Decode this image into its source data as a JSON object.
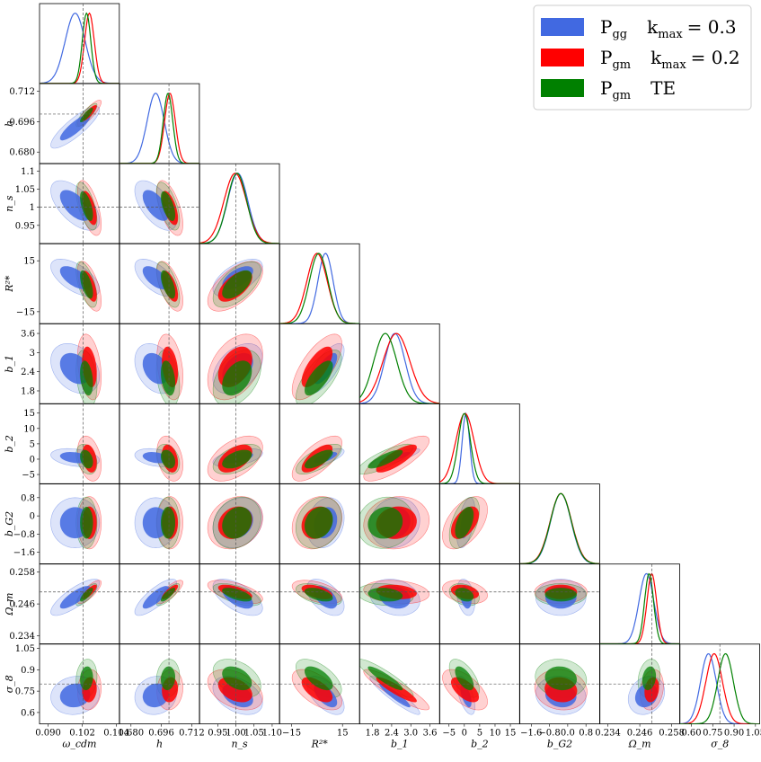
{
  "chart_data": {
    "type": "corner",
    "title": "",
    "series": [
      {
        "name": "P_gg  k_max = 0.3",
        "color": "#4169e1"
      },
      {
        "name": "P_gm  k_max = 0.2",
        "color": "#ff0000"
      },
      {
        "name": "P_gm  TE",
        "color": "#008000"
      }
    ],
    "legend": {
      "placement": "top-right",
      "entries": [
        {
          "main": "P",
          "sub": "gg",
          "extra": "k",
          "extra_sub": "max",
          "value": "= 0.3"
        },
        {
          "main": "P",
          "sub": "gm",
          "extra": "k",
          "extra_sub": "max",
          "value": "= 0.2"
        },
        {
          "main": "P",
          "sub": "gm",
          "extra": "TE",
          "extra_sub": "",
          "value": ""
        }
      ]
    },
    "parameters": [
      {
        "key": "omega_cdm",
        "label": "ω_cdm",
        "range": [
          0.087,
          0.115
        ],
        "ticks": [
          "0.090",
          "0.102",
          "0.114"
        ],
        "tick_values": [
          0.09,
          0.102,
          0.114
        ],
        "truth": 0.1023,
        "means": [
          0.0995,
          0.1045,
          0.1035
        ],
        "sigmas": [
          0.0035,
          0.0017,
          0.0015
        ]
      },
      {
        "key": "h",
        "label": "h",
        "range": [
          0.674,
          0.716
        ],
        "ticks": [
          "0.680",
          "0.696",
          "0.712"
        ],
        "tick_values": [
          0.68,
          0.696,
          0.712
        ],
        "truth": 0.7,
        "means": [
          0.693,
          0.7005,
          0.6995
        ],
        "sigmas": [
          0.0045,
          0.0028,
          0.0025
        ]
      },
      {
        "key": "n_s",
        "label": "n_s",
        "range": [
          0.9,
          1.12
        ],
        "ticks": [
          "0.95",
          "1.00",
          "1.05",
          "1.10"
        ],
        "tick_values": [
          0.95,
          1.0,
          1.05,
          1.1
        ],
        "truth": 1.0,
        "means": [
          1.005,
          0.998,
          1.003
        ],
        "sigmas": [
          0.028,
          0.031,
          0.027
        ]
      },
      {
        "key": "R_star",
        "label": "R²*",
        "range": [
          -22,
          25
        ],
        "ticks": [
          "−15",
          "15"
        ],
        "tick_values": [
          -15,
          15
        ],
        "truth": null,
        "means": [
          5,
          0,
          1
        ],
        "sigmas": [
          4.5,
          6.0,
          5.5
        ]
      },
      {
        "key": "b1",
        "label": "b_1",
        "range": [
          1.4,
          3.9
        ],
        "ticks": [
          "1.8",
          "2.4",
          "3.0",
          "3.6"
        ],
        "tick_values": [
          1.8,
          2.4,
          3.0,
          3.6
        ],
        "truth": null,
        "means": [
          2.5,
          2.55,
          2.2
        ],
        "sigmas": [
          0.32,
          0.42,
          0.36
        ]
      },
      {
        "key": "b2",
        "label": "b_2",
        "range": [
          -8,
          18
        ],
        "ticks": [
          "−5",
          "0",
          "5",
          "10",
          "15"
        ],
        "tick_values": [
          -5,
          0,
          5,
          10,
          15
        ],
        "truth": null,
        "means": [
          0.5,
          0.2,
          0.0
        ],
        "sigmas": [
          1.2,
          3.0,
          2.0
        ]
      },
      {
        "key": "b_G2",
        "label": "b_G2",
        "range": [
          -2.1,
          1.4
        ],
        "ticks": [
          "−1.6",
          "−0.8",
          "0.0",
          "0.8"
        ],
        "tick_values": [
          -1.6,
          -0.8,
          0.0,
          0.8
        ],
        "truth": null,
        "means": [
          -0.3,
          -0.3,
          -0.3
        ],
        "sigmas": [
          0.45,
          0.47,
          0.46
        ]
      },
      {
        "key": "Omega_m",
        "label": "Ω_m",
        "range": [
          0.231,
          0.261
        ],
        "ticks": [
          "0.234",
          "0.246",
          "0.258"
        ],
        "tick_values": [
          0.234,
          0.246,
          0.258
        ],
        "truth": 0.2505,
        "means": [
          0.2485,
          0.2505,
          0.2495
        ],
        "sigmas": [
          0.0028,
          0.0018,
          0.0017
        ]
      },
      {
        "key": "sigma_8",
        "label": "σ_8",
        "range": [
          0.52,
          1.08
        ],
        "ticks": [
          "0.60",
          "0.75",
          "0.90",
          "1.05"
        ],
        "tick_values": [
          0.6,
          0.75,
          0.9,
          1.05
        ],
        "truth": 0.8,
        "means": [
          0.72,
          0.76,
          0.84
        ],
        "sigmas": [
          0.055,
          0.058,
          0.055
        ]
      }
    ],
    "y_tick_labels": {
      "h": [
        "0.680",
        "0.696",
        "0.712"
      ],
      "n_s": [
        "0.95",
        "1",
        "1.05",
        "1.1"
      ],
      "R_star": [
        "−15",
        "15"
      ],
      "b1": [
        "1.8",
        "2.4",
        "3",
        "3.6"
      ],
      "b2": [
        "−5",
        "0",
        "5",
        "10",
        "15"
      ],
      "b_G2": [
        "−1.6",
        "−0.8",
        "0",
        "0.8"
      ],
      "Omega_m": [
        "0.234",
        "0.246",
        "0.258"
      ],
      "sigma_8": [
        "0.6",
        "0.75",
        "0.9",
        "1.05"
      ]
    }
  }
}
